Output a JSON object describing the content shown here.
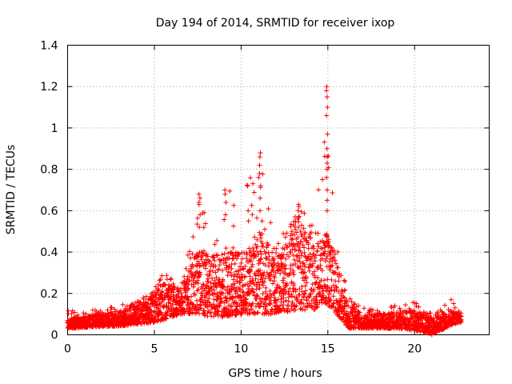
{
  "chart_data": {
    "type": "scatter",
    "title": "Day 194 of 2014, SRMTID for receiver ixop",
    "xlabel": "GPS time / hours",
    "ylabel": "SRMTID / TECUs",
    "xlim": [
      0,
      24.3
    ],
    "ylim": [
      0,
      1.4
    ],
    "grid": true,
    "x_ticks": [
      0,
      5,
      10,
      15,
      20
    ],
    "x_tick_labels": [
      "0",
      "5",
      "10",
      "15",
      "20"
    ],
    "y_ticks": [
      0,
      0.2,
      0.4,
      0.6,
      0.8,
      1.0,
      1.2,
      1.4
    ],
    "y_tick_labels": [
      "0",
      "0.2",
      "0.4",
      "0.6",
      "0.8",
      "1",
      "1.2",
      "1.4"
    ],
    "marker": "plus",
    "color": "#ff0000",
    "series": [
      {
        "name": "SRMTID",
        "x_start": 0,
        "x_end": 22.7,
        "envelope": [
          {
            "x": 0.0,
            "low": 0.03,
            "high": 0.08,
            "peak": 0.12
          },
          {
            "x": 2.0,
            "low": 0.04,
            "high": 0.1,
            "peak": 0.12
          },
          {
            "x": 3.0,
            "low": 0.04,
            "high": 0.12,
            "peak": 0.15
          },
          {
            "x": 4.0,
            "low": 0.05,
            "high": 0.14,
            "peak": 0.16
          },
          {
            "x": 5.0,
            "low": 0.06,
            "high": 0.2,
            "peak": 0.22
          },
          {
            "x": 5.5,
            "low": 0.07,
            "high": 0.26,
            "peak": 0.3
          },
          {
            "x": 6.5,
            "low": 0.1,
            "high": 0.22,
            "peak": 0.24
          },
          {
            "x": 7.5,
            "low": 0.1,
            "high": 0.42,
            "peak": 0.68
          },
          {
            "x": 8.5,
            "low": 0.08,
            "high": 0.38,
            "peak": 0.5
          },
          {
            "x": 9.2,
            "low": 0.09,
            "high": 0.4,
            "peak": 0.7
          },
          {
            "x": 10.3,
            "low": 0.1,
            "high": 0.4,
            "peak": 0.72
          },
          {
            "x": 11.1,
            "low": 0.1,
            "high": 0.52,
            "peak": 0.88
          },
          {
            "x": 12.0,
            "low": 0.1,
            "high": 0.36,
            "peak": 0.42
          },
          {
            "x": 13.3,
            "low": 0.12,
            "high": 0.55,
            "peak": 0.63
          },
          {
            "x": 14.3,
            "low": 0.12,
            "high": 0.45,
            "peak": 0.52
          },
          {
            "x": 14.9,
            "low": 0.15,
            "high": 0.5,
            "peak": 1.2
          },
          {
            "x": 15.5,
            "low": 0.1,
            "high": 0.38,
            "peak": 0.45
          },
          {
            "x": 16.2,
            "low": 0.03,
            "high": 0.15,
            "peak": 0.18
          },
          {
            "x": 17.0,
            "low": 0.03,
            "high": 0.1,
            "peak": 0.13
          },
          {
            "x": 18.0,
            "low": 0.03,
            "high": 0.1,
            "peak": 0.12
          },
          {
            "x": 19.0,
            "low": 0.03,
            "high": 0.11,
            "peak": 0.15
          },
          {
            "x": 20.0,
            "low": 0.02,
            "high": 0.12,
            "peak": 0.17
          },
          {
            "x": 21.0,
            "low": 0.0,
            "high": 0.08,
            "peak": 0.1
          },
          {
            "x": 22.2,
            "low": 0.05,
            "high": 0.12,
            "peak": 0.18
          },
          {
            "x": 22.7,
            "low": 0.06,
            "high": 0.11,
            "peak": 0.12
          }
        ],
        "spikes": [
          {
            "x": 7.6,
            "values": [
              0.52,
              0.58,
              0.63,
              0.66,
              0.68
            ]
          },
          {
            "x": 9.1,
            "values": [
              0.58,
              0.64,
              0.68,
              0.7
            ]
          },
          {
            "x": 10.4,
            "values": [
              0.55,
              0.6,
              0.72
            ]
          },
          {
            "x": 11.1,
            "values": [
              0.6,
              0.66,
              0.72,
              0.78,
              0.82,
              0.86,
              0.88
            ]
          },
          {
            "x": 13.3,
            "values": [
              0.52,
              0.56,
              0.6,
              0.62,
              0.63
            ]
          },
          {
            "x": 14.95,
            "values": [
              0.6,
              0.65,
              0.7,
              0.76,
              0.8,
              0.83,
              0.86,
              0.9,
              0.97,
              1.06,
              1.1,
              1.15,
              1.18,
              1.2
            ]
          },
          {
            "x": 21.0,
            "values": [
              0.0
            ]
          }
        ]
      }
    ]
  }
}
